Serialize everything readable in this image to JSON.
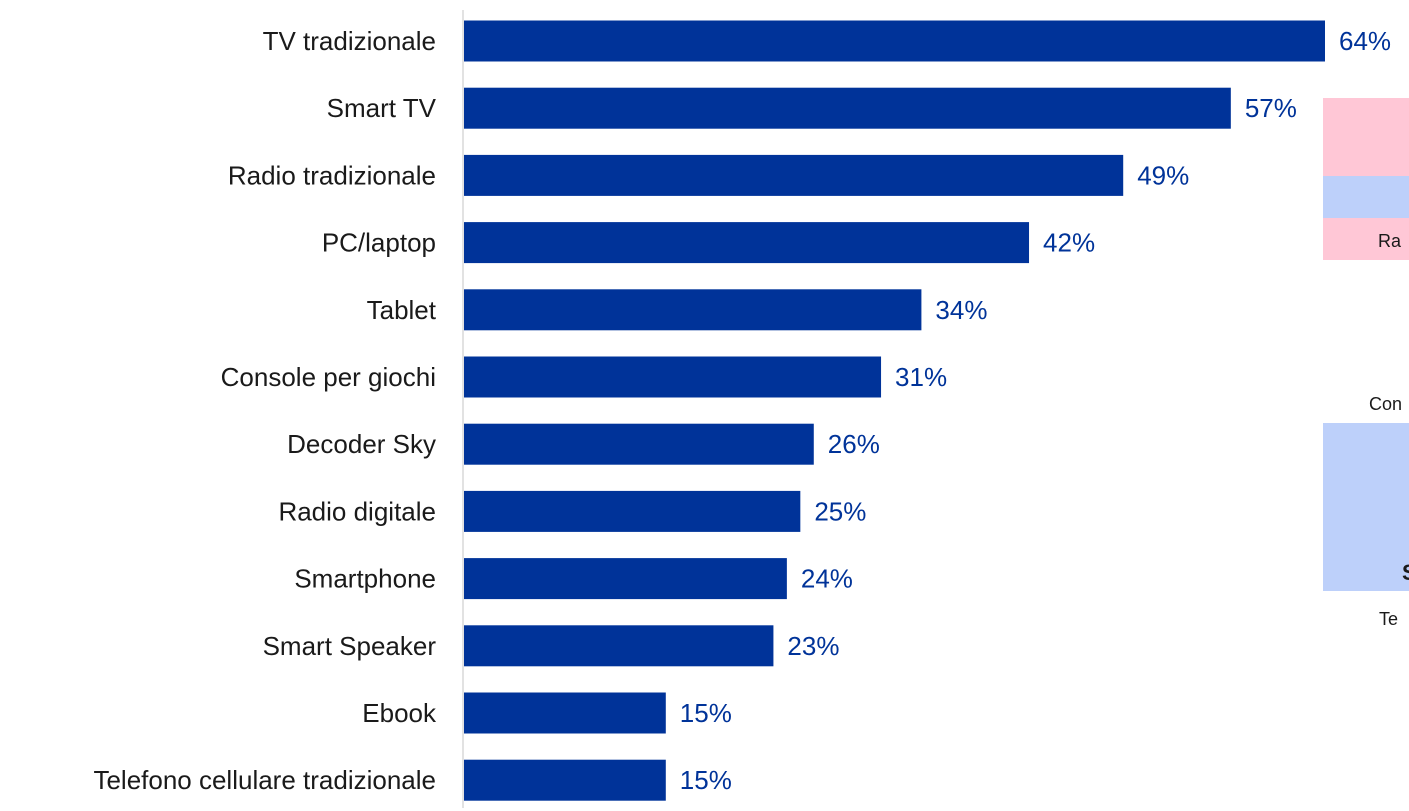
{
  "chart_data": {
    "type": "bar",
    "orientation": "horizontal",
    "categories": [
      "TV tradizionale",
      "Smart TV",
      "Radio tradizionale",
      "PC/laptop",
      "Tablet",
      "Console per giochi",
      "Decoder Sky",
      "Radio digitale",
      "Smartphone",
      "Smart Speaker",
      "Ebook",
      "Telefono cellulare tradizionale"
    ],
    "values": [
      64,
      57,
      49,
      42,
      34,
      31,
      26,
      25,
      24,
      23,
      15,
      15
    ],
    "value_labels": [
      "64%",
      "57%",
      "49%",
      "42%",
      "34%",
      "31%",
      "26%",
      "25%",
      "24%",
      "23%",
      "15%",
      "15%"
    ],
    "unit": "%",
    "xlim": [
      0,
      64
    ],
    "grid": false,
    "legend": "none",
    "colors": {
      "bar": "#003399",
      "value_label": "#003399"
    }
  },
  "side_panel": {
    "colors": {
      "pink": "#ffc7d6",
      "blue": "#bdd0fa"
    },
    "fragments": {
      "ra": "Ra",
      "con": "Con",
      "s": "S",
      "te": "Te"
    }
  }
}
